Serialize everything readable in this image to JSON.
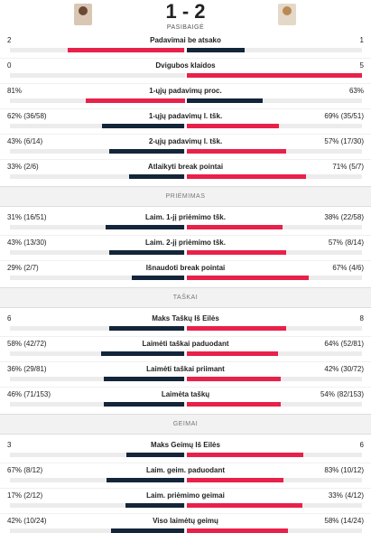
{
  "header": {
    "score": "1 - 2",
    "status": "PASIBAIGĖ"
  },
  "sections": [
    {
      "rows": [
        {
          "name": "Padavimai be atsako",
          "home": 2,
          "away": 1
        },
        {
          "name": "Dvigubos klaidos",
          "home": 0,
          "away": 5
        },
        {
          "name": "1-ųjų padavimų proc.",
          "home": {
            "value": 81,
            "label": "81%"
          },
          "away": {
            "value": 63,
            "label": "63%"
          }
        },
        {
          "name": "1-ųjų padavimų l. tšk.",
          "home": {
            "value": 62,
            "label": "62% (36/58)"
          },
          "away": {
            "value": 69,
            "label": "69% (35/51)"
          }
        },
        {
          "name": "2-ųjų padavimų l. tšk.",
          "home": {
            "value": 43,
            "label": "43% (6/14)"
          },
          "away": {
            "value": 57,
            "label": "57% (17/30)"
          }
        },
        {
          "name": "Atlaikyti break pointai",
          "home": {
            "value": 33,
            "label": "33% (2/6)"
          },
          "away": {
            "value": 71,
            "label": "71% (5/7)"
          }
        }
      ]
    },
    {
      "title": "PRIĖMIMAS",
      "rows": [
        {
          "name": "Laim. 1-jį priėmimo tšk.",
          "home": {
            "value": 31,
            "label": "31% (16/51)"
          },
          "away": {
            "value": 38,
            "label": "38% (22/58)"
          }
        },
        {
          "name": "Laim. 2-jį priėmimo tšk.",
          "home": {
            "value": 43,
            "label": "43% (13/30)"
          },
          "away": {
            "value": 57,
            "label": "57% (8/14)"
          }
        },
        {
          "name": "Išnaudoti break pointai",
          "home": {
            "value": 29,
            "label": "29% (2/7)"
          },
          "away": {
            "value": 67,
            "label": "67% (4/6)"
          }
        }
      ]
    },
    {
      "title": "TAŠKAI",
      "rows": [
        {
          "name": "Maks Taškų Iš Eilės",
          "home": 6,
          "away": 8
        },
        {
          "name": "Laimėti taškai paduodant",
          "home": {
            "value": 58,
            "label": "58% (42/72)"
          },
          "away": {
            "value": 64,
            "label": "64% (52/81)"
          }
        },
        {
          "name": "Laimėti taškai priimant",
          "home": {
            "value": 36,
            "label": "36% (29/81)"
          },
          "away": {
            "value": 42,
            "label": "42% (30/72)"
          }
        },
        {
          "name": "Laimėta taškų",
          "home": {
            "value": 46,
            "label": "46% (71/153)"
          },
          "away": {
            "value": 54,
            "label": "54% (82/153)"
          }
        }
      ]
    },
    {
      "title": "GEIMAI",
      "rows": [
        {
          "name": "Maks Geimų Iš Eilės",
          "home": 3,
          "away": 6
        },
        {
          "name": "Laim. geim. paduodant",
          "home": {
            "value": 67,
            "label": "67% (8/12)"
          },
          "away": {
            "value": 83,
            "label": "83% (10/12)"
          }
        },
        {
          "name": "Laim. priėmimo geimai",
          "home": {
            "value": 17,
            "label": "17% (2/12)"
          },
          "away": {
            "value": 33,
            "label": "33% (4/12)"
          }
        },
        {
          "name": "Viso laimėtų geimų",
          "home": {
            "value": 42,
            "label": "42% (10/24)"
          },
          "away": {
            "value": 58,
            "label": "58% (14/24)"
          }
        }
      ]
    }
  ]
}
